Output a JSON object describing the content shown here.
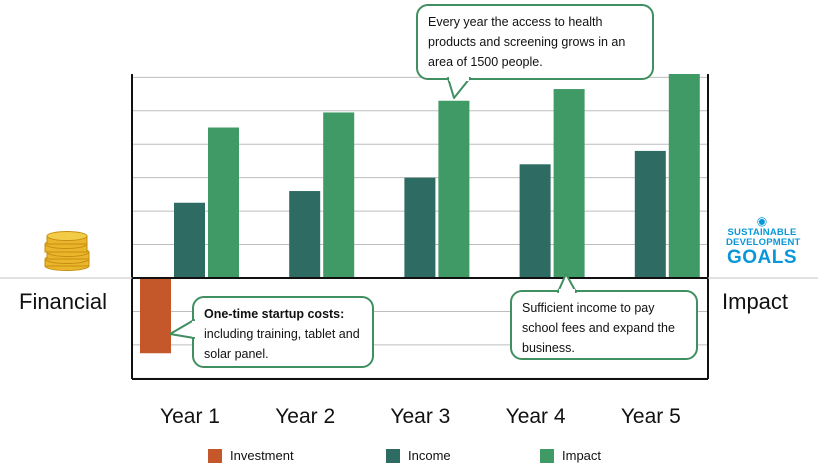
{
  "chart_data": {
    "type": "bar",
    "categories": [
      "Year 1",
      "Year 2",
      "Year 3",
      "Year 4",
      "Year 5"
    ],
    "series": [
      {
        "name": "Investment",
        "color": "#c4582a",
        "values": [
          -2.25,
          null,
          null,
          null,
          null
        ]
      },
      {
        "name": "Income",
        "color": "#2d6b63",
        "values": [
          2.25,
          2.6,
          3.0,
          3.4,
          3.8
        ]
      },
      {
        "name": "Impact",
        "color": "#3f9a66",
        "values": [
          4.5,
          4.95,
          5.3,
          5.65,
          6.1
        ]
      }
    ],
    "ylim": [
      -3.0,
      6.1
    ],
    "grid": true,
    "legend_position": "bottom",
    "left_label": "Financial",
    "right_label": "Impact",
    "annotations": [
      {
        "id": "top",
        "text": "Every year the access to health products and screening grows in an area of 1500 people."
      },
      {
        "id": "left",
        "text_bold": "One-time startup costs:",
        "text": "including training, tablet and solar panel."
      },
      {
        "id": "right",
        "text": "Sufficient income to pay school fees and expand the business."
      }
    ]
  },
  "logos": {
    "sdg": {
      "line1": "SUSTAINABLE",
      "line2": "DEVELOPMENT",
      "line3": "GOALS"
    },
    "coins_icon": "coin-stack-icon"
  }
}
